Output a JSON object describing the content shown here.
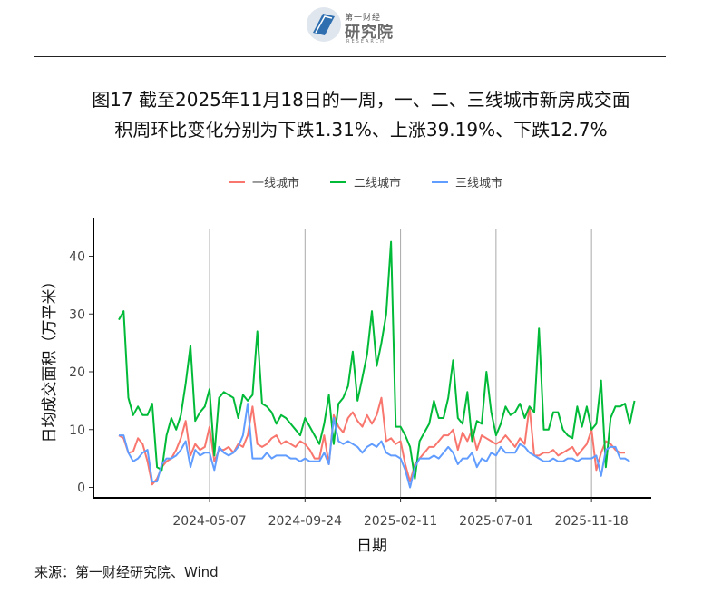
{
  "header": {
    "logo_small": "第一财经",
    "logo_big": "研究院",
    "logo_en": "RESEARCH"
  },
  "figure_title_line1": "图17  截至2025年11月18日的一周，一、二、三线城市新房成交面",
  "figure_title_line2": "积周环比变化分别为下跌1.31%、上涨39.19%、下跌12.7%",
  "source": "来源：第一财经研究院、Wind",
  "colors": {
    "tier1": "#F8766D",
    "tier2": "#00BA38",
    "tier3": "#619CFF"
  },
  "chart_data": {
    "type": "line",
    "xlabel": "日期",
    "ylabel": "日均成交面积（万平米）",
    "ylim": [
      -1.5,
      45
    ],
    "yticks": [
      0,
      10,
      20,
      30,
      40
    ],
    "xticks": [
      "2024-05-07",
      "2024-09-24",
      "2025-02-11",
      "2025-07-01",
      "2025-11-18"
    ],
    "grid": "vertical lines at x ticks",
    "legend_position": "top",
    "x_start": "2023-12-26",
    "x_step_days": 7,
    "series": [
      {
        "name": "一线城市",
        "color": "#F8766D",
        "values": [
          9,
          8.5,
          6,
          6.2,
          8.5,
          7.5,
          4.5,
          0.5,
          1.5,
          3.5,
          4.5,
          5,
          6.5,
          8.5,
          11.5,
          5.5,
          7.5,
          6.5,
          7,
          10.5,
          4.5,
          6.5,
          6.5,
          7,
          6,
          7.5,
          7,
          9,
          14,
          7.5,
          7,
          7.5,
          8.5,
          9,
          7.5,
          8,
          7.5,
          7,
          8,
          7.5,
          6.5,
          5,
          5,
          9,
          4,
          12.5,
          10.5,
          9.5,
          12,
          13,
          11.5,
          10.5,
          12.5,
          11,
          12.5,
          15.5,
          8,
          8.5,
          7.5,
          8,
          4,
          1,
          4,
          5,
          6,
          7,
          7,
          8,
          9,
          9,
          10,
          6.5,
          9.5,
          8,
          10,
          6.5,
          9,
          8.5,
          8,
          7.5,
          8,
          9,
          8,
          7,
          8.5,
          7.5,
          14,
          5.5,
          5.5,
          6,
          6,
          6.5,
          5.5,
          6,
          6.5,
          7,
          5.5,
          6.5,
          7.5,
          10,
          3,
          6,
          8,
          7.5,
          6.5,
          6,
          6
        ]
      },
      {
        "name": "二线城市",
        "color": "#00BA38",
        "values": [
          29,
          30.5,
          15.5,
          12.5,
          14,
          12.5,
          12.5,
          14.5,
          3.5,
          3,
          9,
          12,
          10,
          12.5,
          18,
          24.5,
          11.5,
          13,
          14,
          17,
          5.5,
          15.5,
          16.5,
          16,
          15.5,
          12,
          16,
          15,
          16,
          27,
          14.5,
          14,
          13,
          11,
          12.5,
          12,
          11,
          10,
          9,
          12,
          10.5,
          9,
          7.5,
          11,
          16,
          7.5,
          14.5,
          15.5,
          17.5,
          23.5,
          15,
          19,
          23,
          30.5,
          21,
          25,
          30,
          42.5,
          10.5,
          10.5,
          9,
          7,
          1.5,
          8,
          9.5,
          11,
          15,
          12,
          12,
          15.5,
          22,
          12,
          11,
          16.5,
          8,
          11.5,
          11,
          20,
          13,
          9,
          11,
          14,
          12.5,
          13,
          14.5,
          12,
          14,
          13,
          27.5,
          10,
          10,
          13,
          13,
          10,
          9,
          8.5,
          14,
          10.5,
          14,
          10,
          11,
          18.5,
          3.5,
          12,
          14,
          14,
          14.5,
          11,
          15
        ]
      },
      {
        "name": "三线城市",
        "color": "#619CFF",
        "values": [
          9,
          9,
          6,
          4.5,
          5,
          6,
          6.5,
          1,
          1,
          4,
          5,
          5,
          5.5,
          6.5,
          8,
          3.5,
          6.5,
          5.5,
          6,
          6,
          3,
          7,
          6,
          5.5,
          6,
          7,
          9,
          14.5,
          5,
          5,
          5,
          6,
          5,
          5.5,
          5.5,
          5.5,
          5,
          5,
          4.5,
          5,
          4.5,
          4.5,
          4.5,
          6,
          4,
          12,
          8,
          7.5,
          8,
          7.5,
          7,
          6,
          7,
          7.5,
          7,
          8,
          6,
          5.5,
          5.5,
          5,
          3,
          0,
          3.5,
          5,
          5,
          5,
          5.5,
          5,
          6,
          7,
          6,
          4,
          5,
          5,
          6,
          3.5,
          5,
          4.5,
          6,
          5.5,
          7,
          6,
          6,
          6,
          7.5,
          7,
          6,
          5.5,
          5,
          4.5,
          4.5,
          5,
          4.5,
          4.5,
          5,
          5,
          4.5,
          5,
          5,
          5,
          5.5,
          2,
          6.5,
          7,
          7,
          5,
          5,
          4.5
        ]
      }
    ]
  }
}
